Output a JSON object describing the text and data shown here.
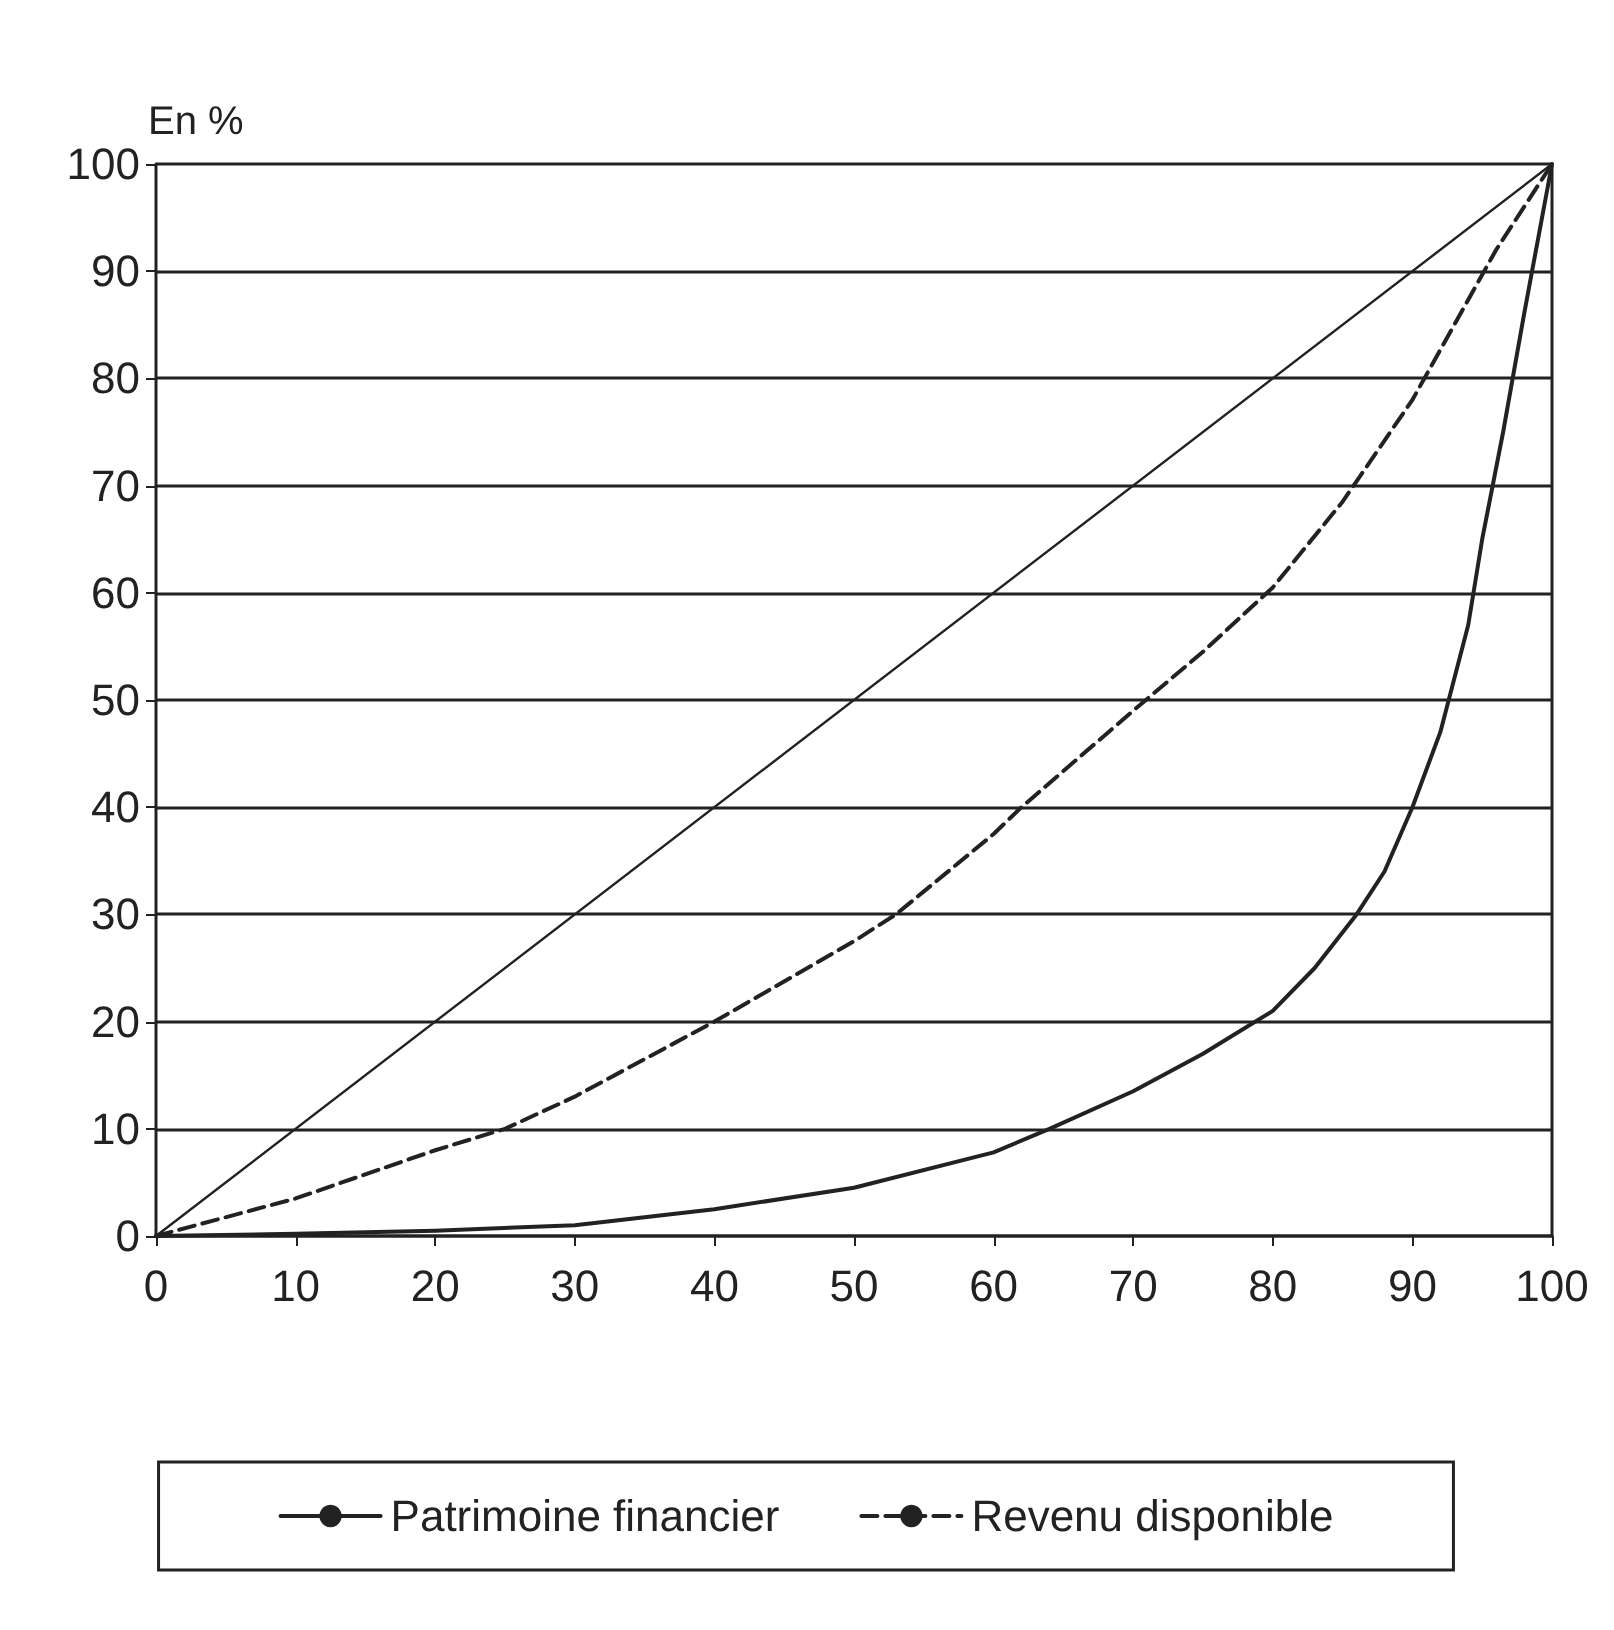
{
  "chart_data": {
    "type": "line",
    "ylabel": "En %",
    "xlim": [
      0,
      100
    ],
    "xticks": [
      0,
      10,
      20,
      30,
      40,
      50,
      60,
      70,
      80,
      90,
      100
    ],
    "ylim": [
      0,
      100
    ],
    "yticks": [
      0,
      10,
      20,
      30,
      40,
      50,
      60,
      70,
      80,
      90,
      100
    ],
    "grid": "y",
    "legend": "bottom",
    "marker": "none",
    "series": [
      {
        "color": "#222222",
        "line_style": "solid",
        "x": [
          0,
          100
        ],
        "values": [
          0,
          100
        ]
      },
      {
        "name": "Patrimoine financier",
        "color": "#222222",
        "line_style": "solid",
        "x": [
          0,
          10,
          20,
          30,
          40,
          50,
          60,
          64,
          70,
          75,
          80,
          83,
          86,
          88,
          90,
          92,
          94,
          95,
          96.5,
          98,
          99,
          100
        ],
        "values": [
          0,
          0.2,
          0.5,
          1,
          2.5,
          4.5,
          7.8,
          10,
          13.5,
          17,
          21,
          25,
          30,
          34,
          40,
          47,
          57,
          65,
          75,
          86,
          93,
          100
        ]
      },
      {
        "name": "Revenu disponible",
        "color": "#222222",
        "line_style": "dashed",
        "x": [
          0,
          10,
          20,
          25,
          30,
          40,
          50,
          53,
          60,
          62,
          70,
          75,
          80,
          85,
          90,
          93,
          96,
          98,
          100
        ],
        "values": [
          0,
          3.5,
          8,
          10,
          13,
          20,
          27.5,
          30,
          37.5,
          40,
          49,
          54.5,
          60.5,
          68.5,
          78,
          85,
          92,
          96,
          100
        ]
      }
    ]
  }
}
